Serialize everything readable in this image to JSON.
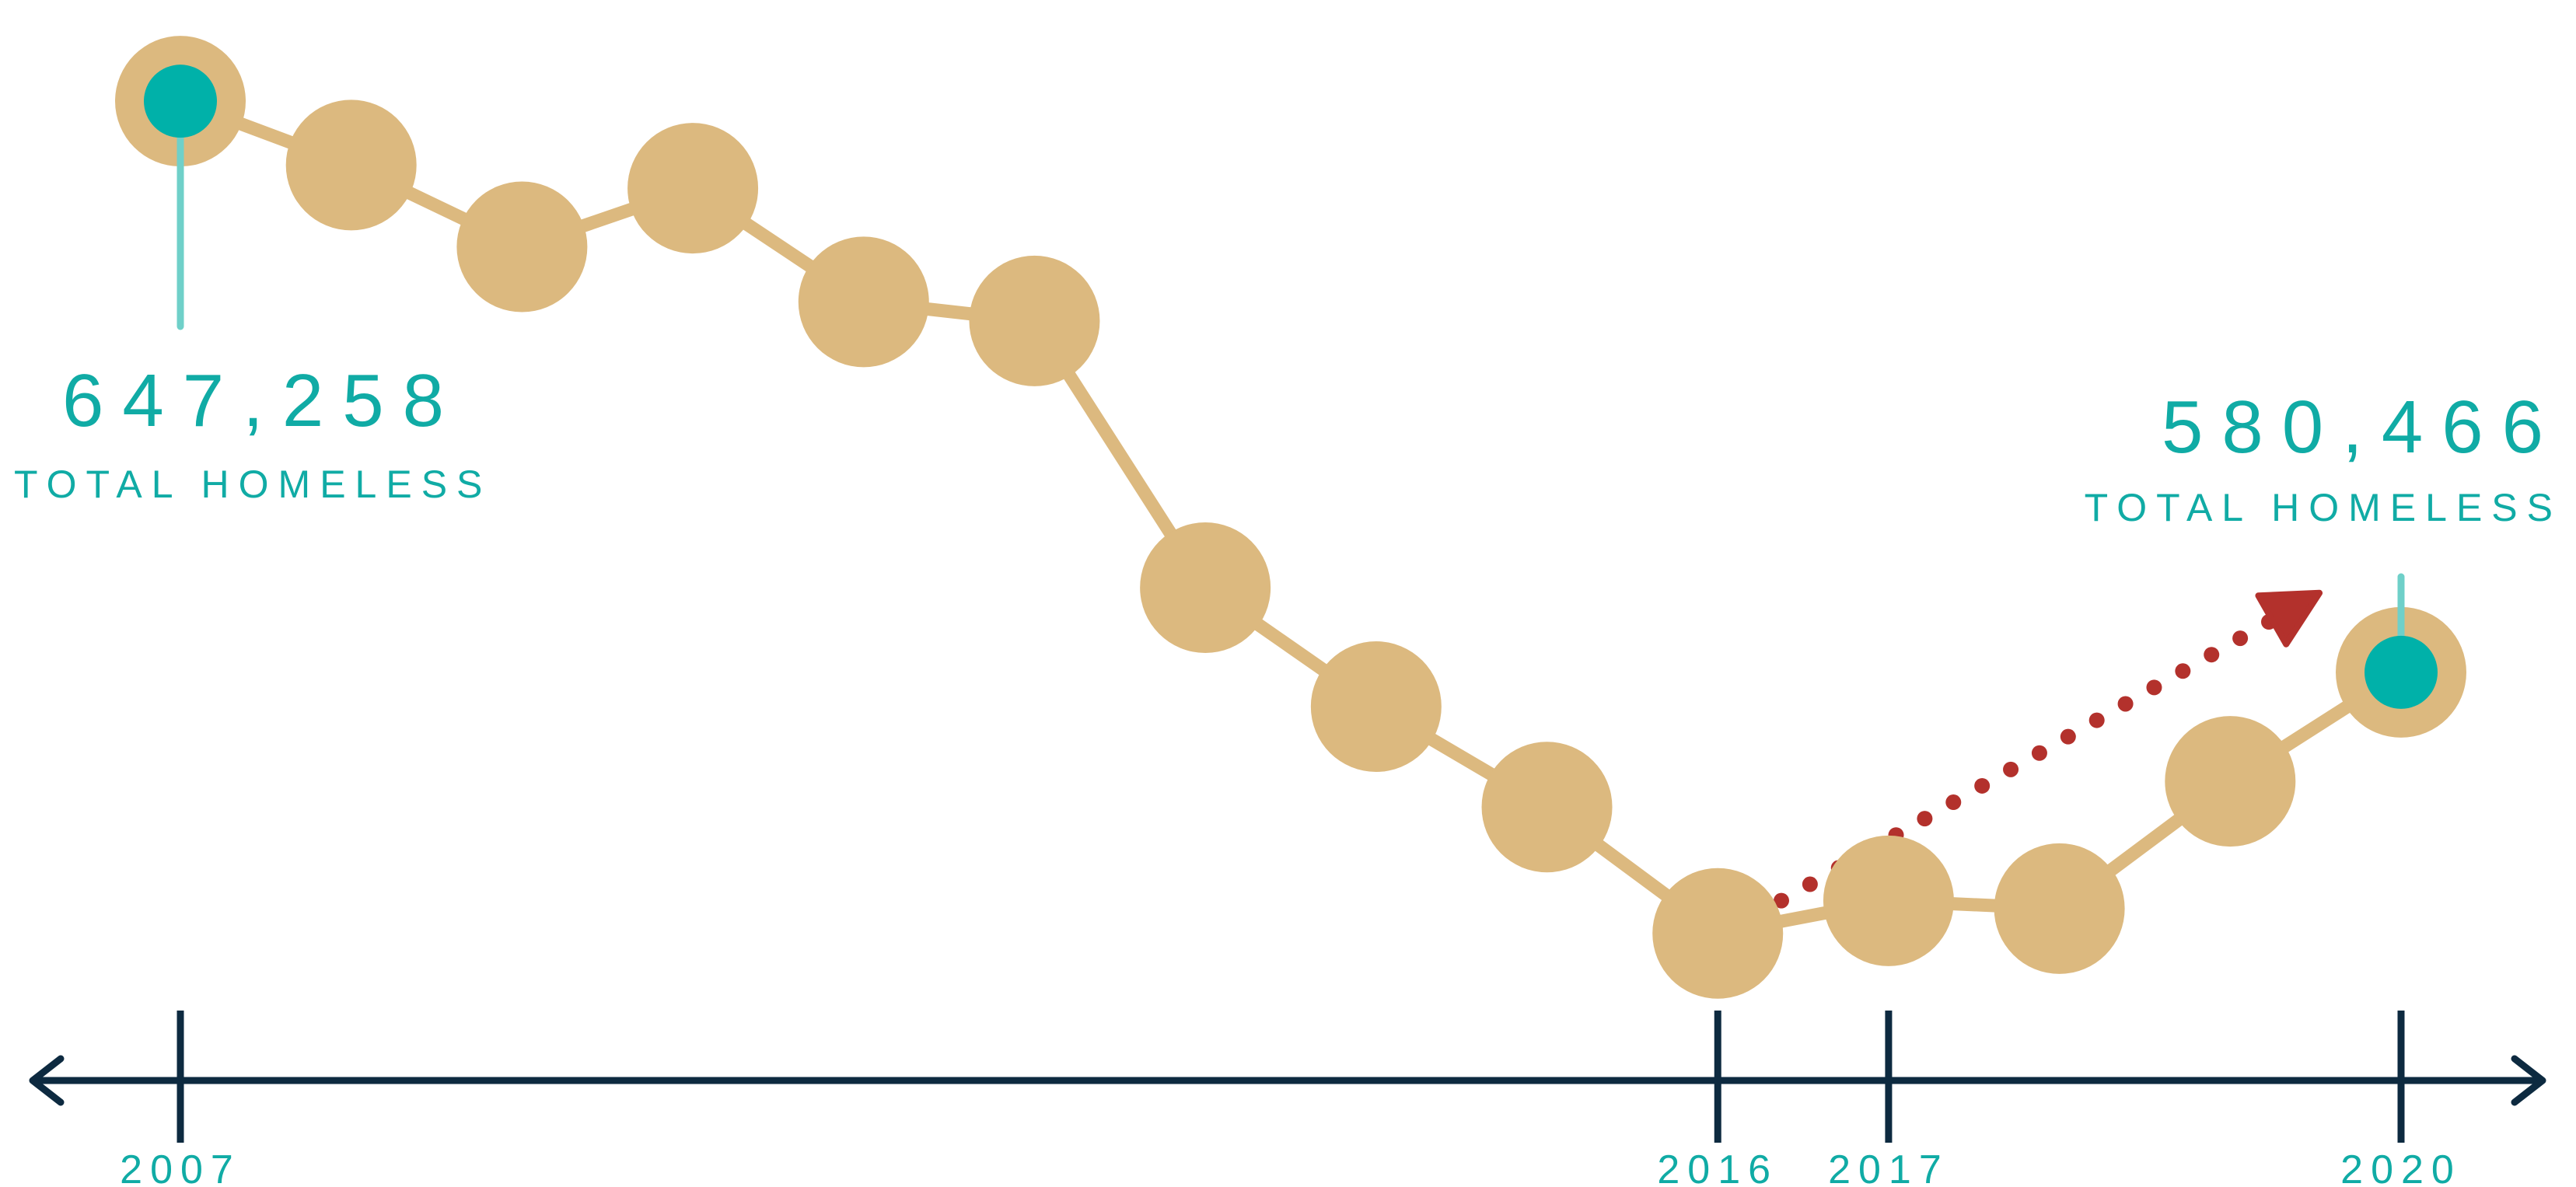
{
  "colors": {
    "line": "#dcb97f",
    "highlight": "#00b1a9",
    "stem": "#6fd0c9",
    "axis": "#0d2a40",
    "trend": "#b3312c",
    "text": "#10aba5"
  },
  "callouts": {
    "start": {
      "value": "647,258",
      "label": "TOTAL HOMELESS"
    },
    "end": {
      "value": "580,466",
      "label": "TOTAL HOMELESS"
    }
  },
  "chart_data": {
    "type": "line",
    "x": [
      2007,
      2008,
      2009,
      2010,
      2011,
      2012,
      2013,
      2014,
      2015,
      2016,
      2017,
      2018,
      2019,
      2020
    ],
    "values": [
      647258,
      639784,
      630227,
      637077,
      623788,
      621553,
      590364,
      576450,
      564708,
      549928,
      553742,
      552830,
      567715,
      580466
    ],
    "xlim": [
      2007,
      2020
    ],
    "ylim": [
      545000,
      650000
    ],
    "tick_labels": [
      "2007",
      "2016",
      "2017",
      "2020"
    ],
    "annotations": [
      "647,258 TOTAL HOMELESS",
      "580,466 TOTAL HOMELESS"
    ],
    "trend_arrow": {
      "from_x": 2016,
      "to_x": 2020,
      "direction": "up"
    },
    "grid": false
  }
}
